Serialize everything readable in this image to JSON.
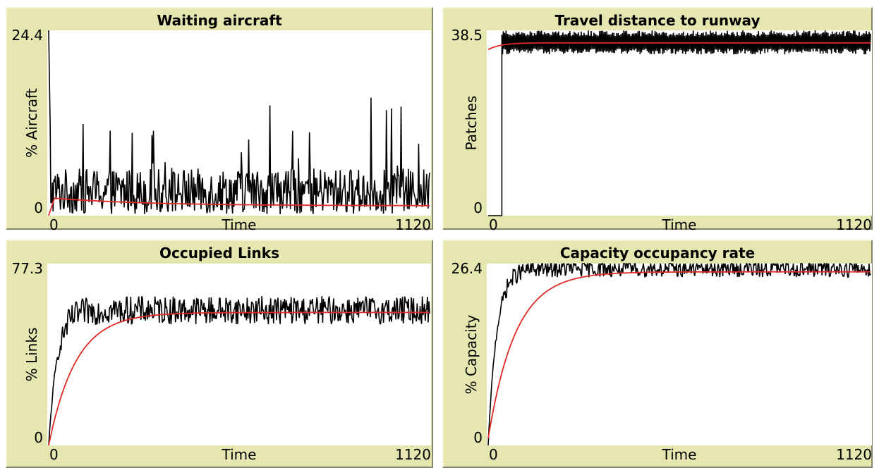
{
  "chart_data": [
    {
      "type": "line",
      "title": "Waiting aircraft",
      "xlabel": "Time",
      "ylabel": "% Aircraft",
      "xlim": [
        0,
        1120
      ],
      "ylim": [
        0,
        24.4
      ],
      "x_tick_labels": [
        "0",
        "1120"
      ],
      "y_tick_labels": [
        "24.4",
        "0"
      ],
      "series": [
        {
          "color": "#000000",
          "profile": "noisy-spikes",
          "x_end": 1120,
          "baseline": 3.2,
          "noise": 3.0,
          "initial_spike": 24.4,
          "spike_max": 17.0
        },
        {
          "color": "#e02a24",
          "profile": "converging",
          "x_end": 1120,
          "start": 0,
          "peak": 2.3,
          "final": 1.3
        }
      ]
    },
    {
      "type": "line",
      "title": "Travel distance to runway",
      "xlabel": "Time",
      "ylabel": "Patches",
      "xlim": [
        0,
        1120
      ],
      "ylim": [
        0,
        38.5
      ],
      "x_tick_labels": [
        "0",
        "1120"
      ],
      "y_tick_labels": [
        "38.5",
        "0"
      ],
      "series": [
        {
          "color": "#000000",
          "profile": "band",
          "x_start": 40,
          "x_end": 1120,
          "low": 33.5,
          "high": 38.5
        },
        {
          "color": "#e02a24",
          "profile": "flat",
          "x_start": 0,
          "x_end": 1120,
          "start": 34.5,
          "final": 35.9
        }
      ]
    },
    {
      "type": "line",
      "title": "Occupied Links",
      "xlabel": "Time",
      "ylabel": "% Links",
      "xlim": [
        0,
        1120
      ],
      "ylim": [
        0,
        77.3
      ],
      "x_tick_labels": [
        "0",
        "1120"
      ],
      "y_tick_labels": [
        "77.3",
        "0"
      ],
      "series": [
        {
          "color": "#000000",
          "profile": "noisy-rise",
          "x_end": 1120,
          "plateau": 57.5,
          "noise": 6.0
        },
        {
          "color": "#e02a24",
          "profile": "saturating",
          "x_end": 1120,
          "start": 0,
          "final": 56.5
        }
      ]
    },
    {
      "type": "line",
      "title": "Capacity occupancy rate",
      "xlabel": "Time",
      "ylabel": "% Capacity",
      "xlim": [
        0,
        1120
      ],
      "ylim": [
        0,
        26.4
      ],
      "x_tick_labels": [
        "0",
        "1120"
      ],
      "y_tick_labels": [
        "26.4",
        "0"
      ],
      "series": [
        {
          "color": "#000000",
          "profile": "noisy-rise",
          "x_end": 1120,
          "plateau": 25.7,
          "noise": 1.3
        },
        {
          "color": "#e02a24",
          "profile": "saturating",
          "x_end": 1120,
          "start": 1.0,
          "final": 25.2
        }
      ]
    }
  ]
}
